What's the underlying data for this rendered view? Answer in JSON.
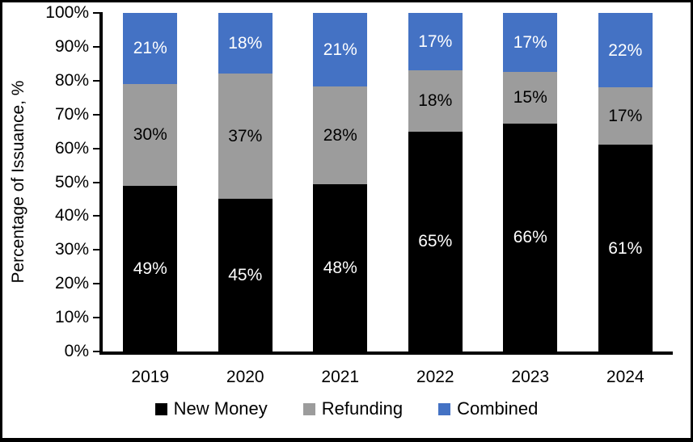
{
  "chart_data": {
    "type": "bar",
    "variant": "stacked",
    "title": "",
    "xlabel": "",
    "ylabel": "Percentage of Issuance, %",
    "ylim": [
      0,
      100
    ],
    "grid": false,
    "legend_position": "bottom",
    "data_label_suffix": "%",
    "yticks": [
      {
        "value": 0,
        "label": "0%"
      },
      {
        "value": 10,
        "label": "10%"
      },
      {
        "value": 20,
        "label": "20%"
      },
      {
        "value": 30,
        "label": "30%"
      },
      {
        "value": 40,
        "label": "40%"
      },
      {
        "value": 50,
        "label": "50%"
      },
      {
        "value": 60,
        "label": "60%"
      },
      {
        "value": 70,
        "label": "70%"
      },
      {
        "value": 80,
        "label": "80%"
      },
      {
        "value": 90,
        "label": "90%"
      },
      {
        "value": 100,
        "label": "100%"
      }
    ],
    "categories": [
      "2019",
      "2020",
      "2021",
      "2022",
      "2023",
      "2024"
    ],
    "series": [
      {
        "name": "New Money",
        "color": "#000000",
        "label_color": "#FFFFFF",
        "values": [
          49,
          45,
          48,
          65,
          66,
          61
        ]
      },
      {
        "name": "Refunding",
        "color": "#9C9C9C",
        "label_color": "#000000",
        "values": [
          30,
          37,
          28,
          18,
          15,
          17
        ]
      },
      {
        "name": "Combined",
        "color": "#4472C4",
        "label_color": "#FFFFFF",
        "values": [
          21,
          18,
          21,
          17,
          17,
          22
        ]
      }
    ]
  }
}
